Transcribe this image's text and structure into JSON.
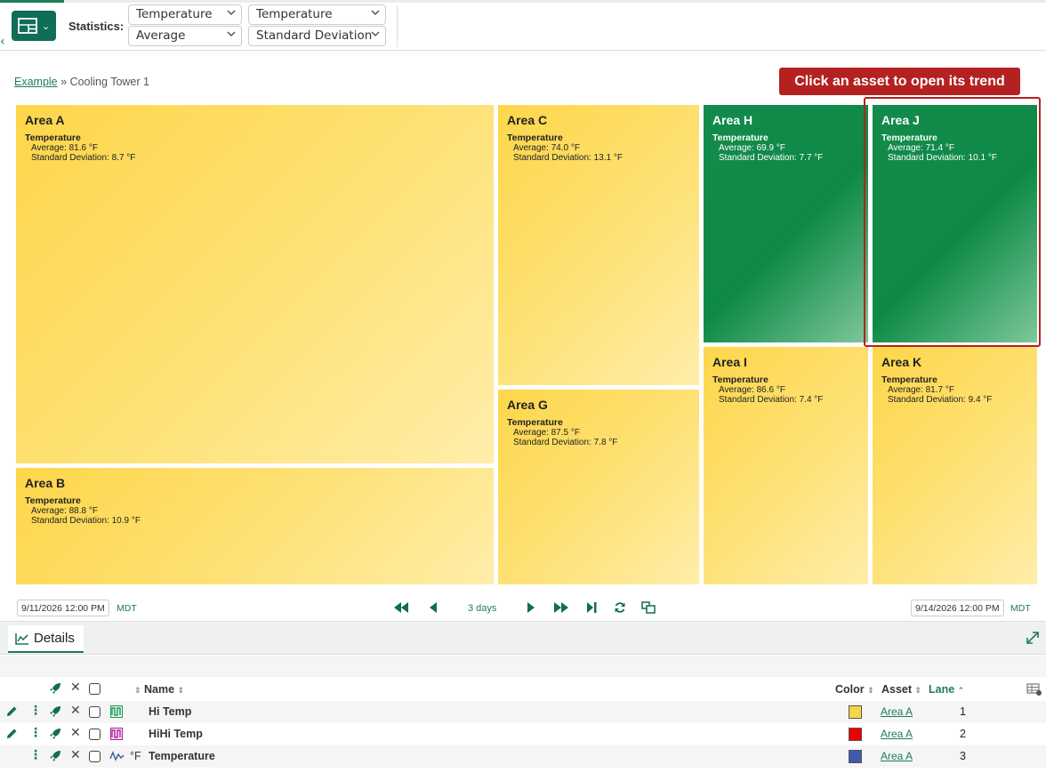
{
  "toolbar": {
    "statistics_label": "Statistics:",
    "selects": [
      {
        "value": "Temperature"
      },
      {
        "value": "Temperature"
      },
      {
        "value": "Average"
      },
      {
        "value": "Standard Deviation"
      }
    ]
  },
  "breadcrumb": {
    "root": "Example",
    "separator": "»",
    "current": "Cooling Tower 1"
  },
  "callout": "Click an asset to open its trend",
  "treemap": {
    "tiles": [
      {
        "name": "Area A",
        "property": "Temperature",
        "average": "Average: 81.6 °F",
        "stddev": "Standard Deviation: 8.7 °F",
        "color": "yellow"
      },
      {
        "name": "Area B",
        "property": "Temperature",
        "average": "Average: 88.8 °F",
        "stddev": "Standard Deviation: 10.9 °F",
        "color": "yellow"
      },
      {
        "name": "Area C",
        "property": "Temperature",
        "average": "Average: 74.0 °F",
        "stddev": "Standard Deviation: 13.1 °F",
        "color": "yellow"
      },
      {
        "name": "Area G",
        "property": "Temperature",
        "average": "Average: 87.5 °F",
        "stddev": "Standard Deviation: 7.8 °F",
        "color": "yellow"
      },
      {
        "name": "Area H",
        "property": "Temperature",
        "average": "Average: 69.9 °F",
        "stddev": "Standard Deviation: 7.7 °F",
        "color": "green"
      },
      {
        "name": "Area I",
        "property": "Temperature",
        "average": "Average: 86.6 °F",
        "stddev": "Standard Deviation: 7.4 °F",
        "color": "yellow"
      },
      {
        "name": "Area J",
        "property": "Temperature",
        "average": "Average: 71.4 °F",
        "stddev": "Standard Deviation: 10.1 °F",
        "color": "green"
      },
      {
        "name": "Area K",
        "property": "Temperature",
        "average": "Average: 81.7 °F",
        "stddev": "Standard Deviation: 9.4 °F",
        "color": "yellow"
      }
    ]
  },
  "timebar": {
    "start": "9/11/2026 12:00 PM",
    "start_tz": "MDT",
    "range": "3 days",
    "end": "9/14/2026 12:00 PM",
    "end_tz": "MDT"
  },
  "details": {
    "tab_label": "Details",
    "columns": {
      "name": "Name",
      "color": "Color",
      "asset": "Asset",
      "lane": "Lane"
    },
    "rows": [
      {
        "name": "Hi Temp",
        "unit": "",
        "color": "#f7d547",
        "asset": "Area A",
        "lane": "1",
        "icon": "condition-icon"
      },
      {
        "name": "HiHi Temp",
        "unit": "",
        "color": "#ee0000",
        "asset": "Area A",
        "lane": "2",
        "icon": "condition-icon"
      },
      {
        "name": "Temperature",
        "unit": "°F",
        "color": "#3f5aa8",
        "asset": "Area A",
        "lane": "3",
        "icon": "signal-icon"
      }
    ]
  },
  "colors": {
    "accent": "#1f7a5a",
    "callout": "#b52020",
    "high": "#fdd64a",
    "low": "#0e8a46"
  }
}
